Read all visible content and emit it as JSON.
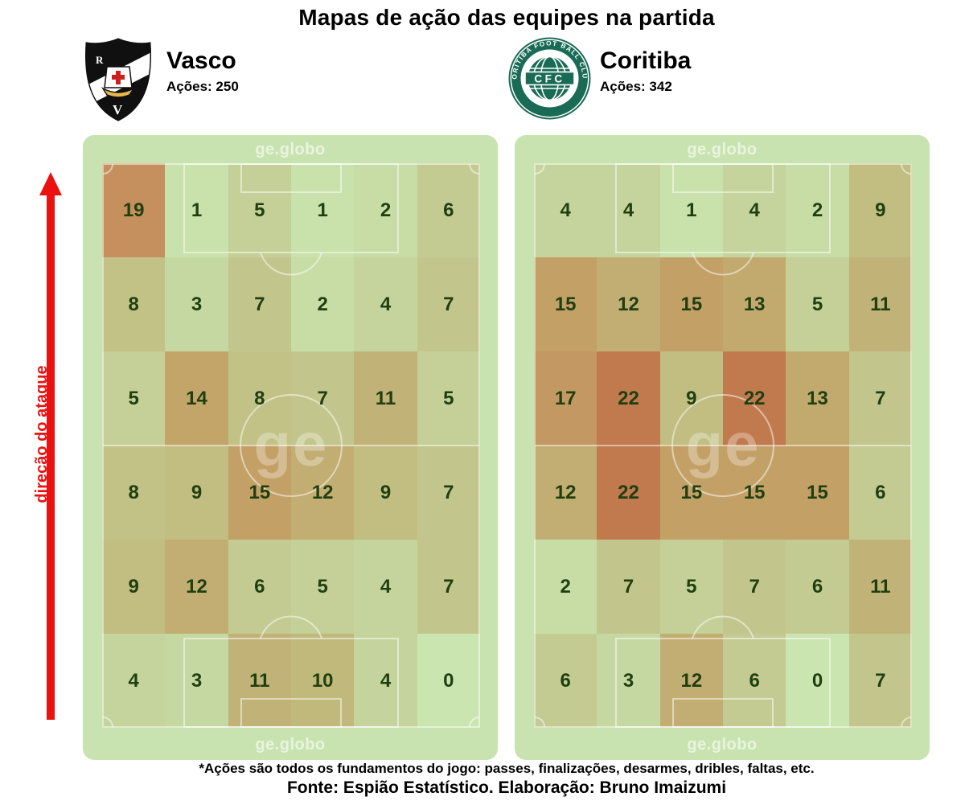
{
  "title": "Mapas de ação das equipes na partida",
  "attack": {
    "label": "direção do ataque"
  },
  "teams": [
    {
      "name": "Vasco",
      "actions": "Ações: 250"
    },
    {
      "name": "Coritiba",
      "actions": "Ações: 342"
    }
  ],
  "watermark": {
    "top": "ge.globo",
    "bottom": "ge.globo",
    "center": "ge"
  },
  "footer": {
    "note": "*Ações são todos os fundamentos do jogo: passes, finalizações, desarmes, dribles, faltas, etc.",
    "source": "Fonte: Espião Estatístico. Elaboração: Bruno Imaizumi"
  },
  "colors": {
    "accent_red": "#ea1111",
    "pitch_green": "#c9e3b0",
    "number_green": "#1f3f10",
    "scale_low": "#cae5b0",
    "scale_mid": "#c1b87e",
    "scale_high": "#c17a4e",
    "coritiba_green": "#1a6b55"
  },
  "chart_data": {
    "type": "heatmap",
    "title": "Mapas de ação das equipes na partida",
    "rows": 6,
    "cols": 6,
    "attack_direction": "up",
    "value_domain": [
      0,
      22
    ],
    "legend_position": "none",
    "series": [
      {
        "name": "Vasco",
        "total_actions": 250,
        "values": [
          [
            19,
            1,
            5,
            1,
            2,
            6
          ],
          [
            8,
            3,
            7,
            2,
            4,
            7
          ],
          [
            5,
            14,
            8,
            7,
            11,
            5
          ],
          [
            8,
            9,
            15,
            12,
            9,
            7
          ],
          [
            9,
            12,
            6,
            5,
            4,
            7
          ],
          [
            4,
            3,
            11,
            10,
            4,
            0
          ]
        ]
      },
      {
        "name": "Coritiba",
        "total_actions": 342,
        "values": [
          [
            4,
            4,
            1,
            4,
            2,
            9
          ],
          [
            15,
            12,
            15,
            13,
            5,
            11
          ],
          [
            17,
            22,
            9,
            22,
            13,
            7
          ],
          [
            12,
            22,
            15,
            15,
            15,
            6
          ],
          [
            2,
            7,
            5,
            7,
            6,
            11
          ],
          [
            6,
            3,
            12,
            6,
            0,
            7
          ]
        ]
      }
    ]
  }
}
